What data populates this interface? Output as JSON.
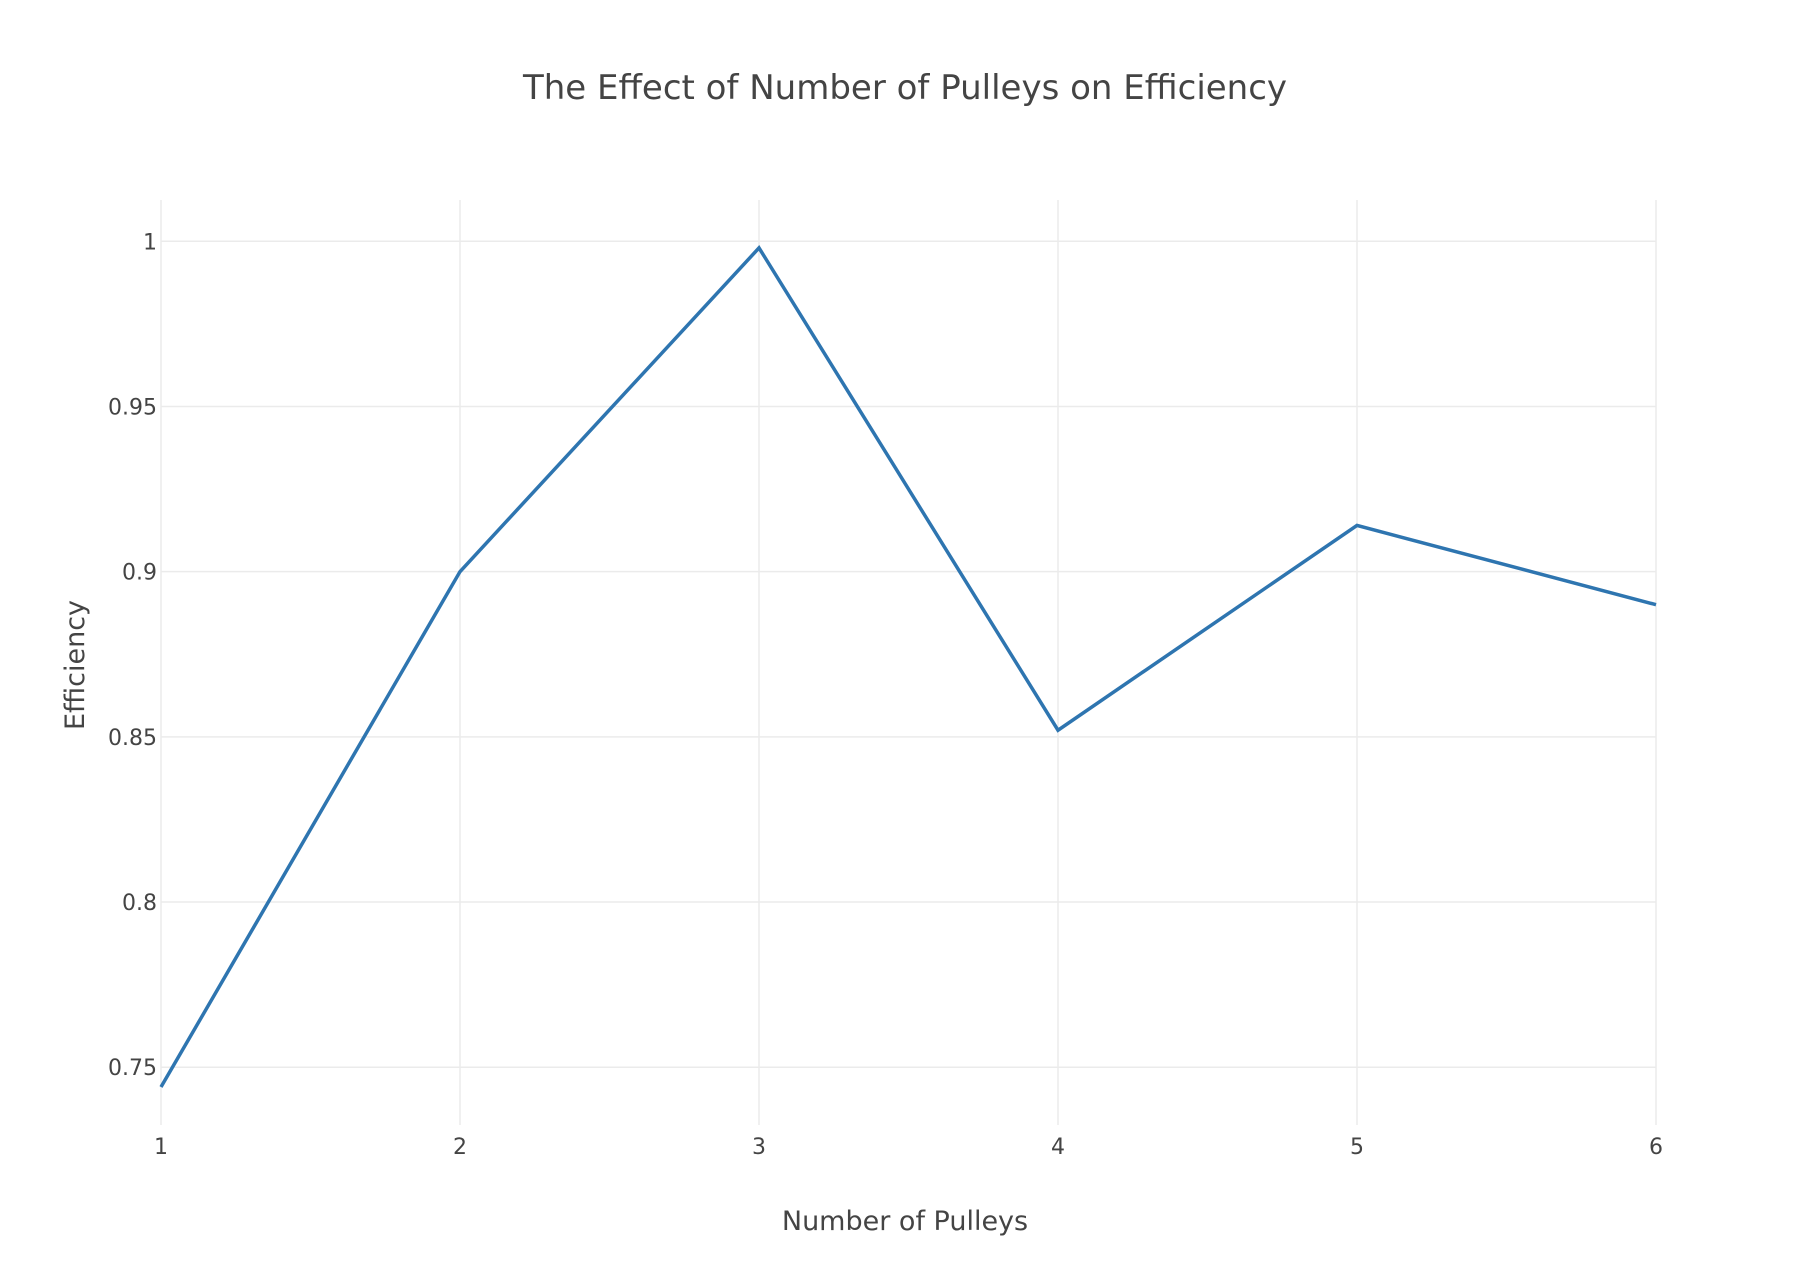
{
  "chart_data": {
    "type": "line",
    "title": "The Effect of Number of Pulleys on  Efficiency",
    "xlabel": "Number of Pulleys",
    "ylabel": "Efficiency",
    "x": [
      1,
      2,
      3,
      4,
      5,
      6
    ],
    "series": [
      {
        "values": [
          0.744,
          0.9,
          0.998,
          0.852,
          0.914,
          0.89
        ],
        "color": "#2e75b0"
      }
    ],
    "xlim": [
      1,
      6
    ],
    "ylim": [
      0.7325,
      1.0125
    ],
    "x_ticks": [
      1,
      2,
      3,
      4,
      5,
      6
    ],
    "x_tick_labels": [
      "1",
      "2",
      "3",
      "4",
      "5",
      "6"
    ],
    "y_ticks": [
      0.75,
      0.8,
      0.85,
      0.9,
      0.95,
      1
    ],
    "y_tick_labels": [
      "0.75",
      "0.8",
      "0.85",
      "0.9",
      "0.95",
      "1"
    ],
    "grid": true,
    "legend": false
  },
  "colors": {
    "line": "#2e75b0",
    "grid": "#ebebeb",
    "text": "#444444",
    "background": "#ffffff"
  }
}
